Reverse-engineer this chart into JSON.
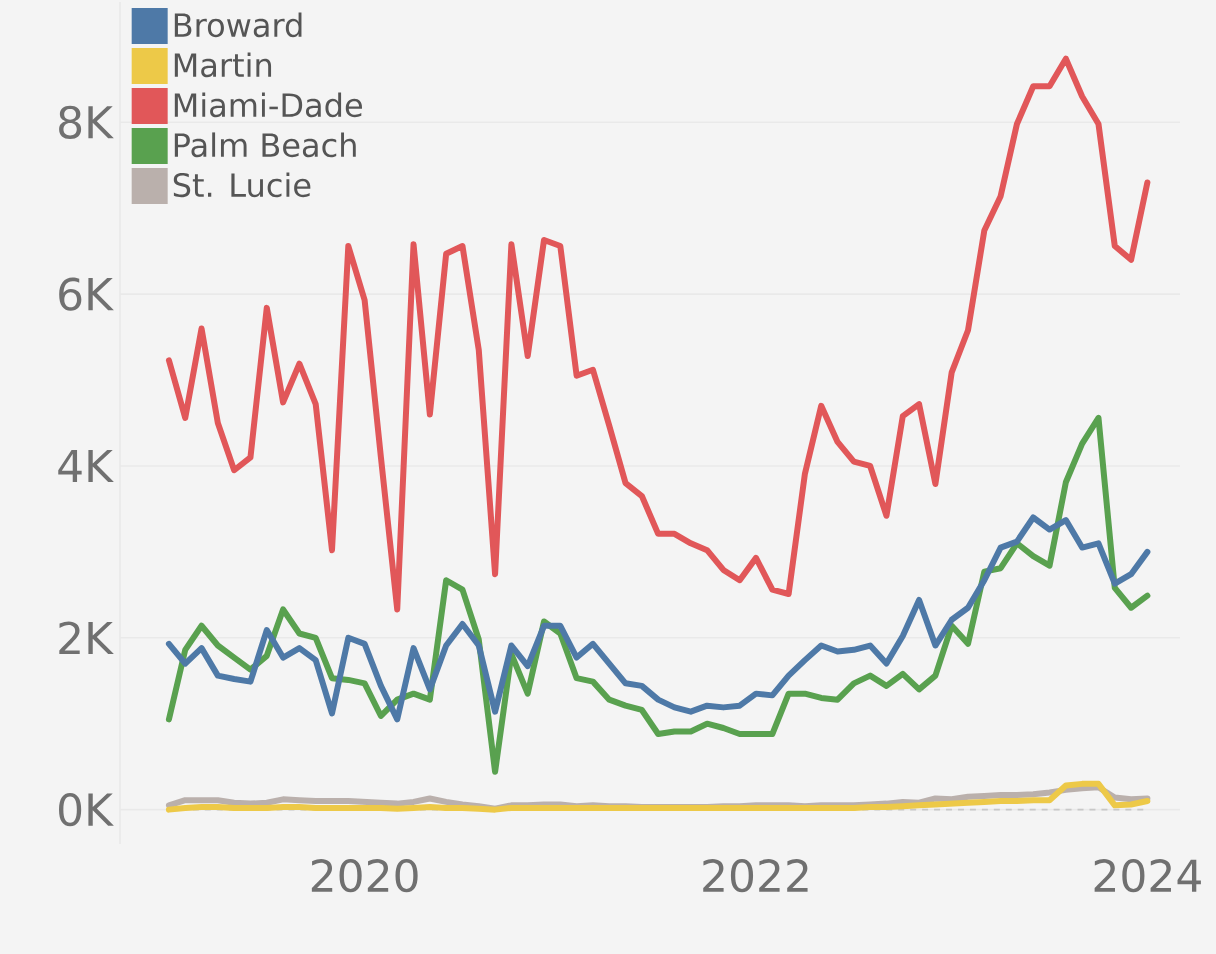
{
  "chart_data": {
    "type": "line",
    "x": [
      "2019-01",
      "2019-02",
      "2019-03",
      "2019-04",
      "2019-05",
      "2019-06",
      "2019-07",
      "2019-08",
      "2019-09",
      "2019-10",
      "2019-11",
      "2019-12",
      "2020-01",
      "2020-02",
      "2020-03",
      "2020-04",
      "2020-05",
      "2020-06",
      "2020-07",
      "2020-08",
      "2020-09",
      "2020-10",
      "2020-11",
      "2020-12",
      "2021-01",
      "2021-02",
      "2021-03",
      "2021-04",
      "2021-05",
      "2021-06",
      "2021-07",
      "2021-08",
      "2021-09",
      "2021-10",
      "2021-11",
      "2021-12",
      "2022-01",
      "2022-02",
      "2022-03",
      "2022-04",
      "2022-05",
      "2022-06",
      "2022-07",
      "2022-08",
      "2022-09",
      "2022-10",
      "2022-11",
      "2022-12",
      "2023-01",
      "2023-02",
      "2023-03",
      "2023-04",
      "2023-05",
      "2023-06",
      "2023-07",
      "2023-08",
      "2023-09",
      "2023-10",
      "2023-11",
      "2023-12",
      "2024-01"
    ],
    "series": [
      {
        "name": "Broward",
        "color": "#4e79a7",
        "values": [
          1930,
          1700,
          1880,
          1560,
          1520,
          1490,
          2090,
          1770,
          1880,
          1740,
          1120,
          2000,
          1930,
          1440,
          1050,
          1880,
          1400,
          1910,
          2160,
          1910,
          1140,
          1910,
          1670,
          2140,
          2140,
          1770,
          1930,
          1700,
          1470,
          1440,
          1280,
          1190,
          1140,
          1210,
          1190,
          1210,
          1350,
          1330,
          1560,
          1740,
          1910,
          1840,
          1860,
          1910,
          1700,
          2020,
          2440,
          1910,
          2210,
          2350,
          2670,
          3050,
          3120,
          3400,
          3260,
          3370,
          3050,
          3100,
          2630,
          2740,
          3000
        ]
      },
      {
        "name": "Martin",
        "color": "#edc948",
        "values": [
          0,
          20,
          30,
          30,
          20,
          20,
          20,
          30,
          30,
          20,
          20,
          20,
          20,
          20,
          10,
          20,
          30,
          20,
          20,
          10,
          0,
          20,
          20,
          20,
          20,
          20,
          20,
          20,
          20,
          20,
          20,
          20,
          20,
          20,
          20,
          20,
          20,
          20,
          20,
          20,
          20,
          20,
          20,
          30,
          30,
          40,
          50,
          60,
          70,
          80,
          90,
          100,
          100,
          110,
          110,
          280,
          300,
          300,
          50,
          60,
          100
        ]
      },
      {
        "name": "Miami-Dade",
        "color": "#e15759",
        "values": [
          5230,
          4560,
          5600,
          4500,
          3950,
          4100,
          5840,
          4740,
          5190,
          4720,
          3020,
          6560,
          5930,
          4100,
          2330,
          6580,
          4600,
          6470,
          6560,
          5350,
          2740,
          6580,
          5280,
          6630,
          6560,
          5050,
          5120,
          4470,
          3800,
          3650,
          3210,
          3210,
          3100,
          3020,
          2790,
          2670,
          2930,
          2560,
          2510,
          3910,
          4700,
          4280,
          4050,
          4000,
          3420,
          4580,
          4720,
          3790,
          5090,
          5580,
          6740,
          7140,
          7980,
          8420,
          8420,
          8740,
          8300,
          7980,
          6560,
          6400,
          7300
        ]
      },
      {
        "name": "Palm Beach",
        "color": "#59a14f",
        "values": [
          1050,
          1860,
          2140,
          1910,
          1770,
          1630,
          1790,
          2330,
          2050,
          2000,
          1530,
          1510,
          1470,
          1090,
          1280,
          1350,
          1280,
          2670,
          2560,
          1980,
          440,
          1810,
          1350,
          2190,
          2050,
          1530,
          1490,
          1280,
          1210,
          1160,
          880,
          910,
          910,
          1000,
          950,
          880,
          880,
          880,
          1350,
          1350,
          1300,
          1280,
          1470,
          1560,
          1440,
          1580,
          1400,
          1560,
          2140,
          1930,
          2770,
          2810,
          3100,
          2950,
          2840,
          3810,
          4260,
          4560,
          2580,
          2350,
          2490
        ]
      },
      {
        "name": "St. Lucie",
        "color": "#bab0ac",
        "values": [
          50,
          110,
          110,
          110,
          80,
          70,
          80,
          120,
          110,
          100,
          100,
          100,
          90,
          80,
          70,
          90,
          130,
          90,
          60,
          40,
          10,
          50,
          50,
          60,
          60,
          40,
          50,
          40,
          40,
          30,
          30,
          30,
          30,
          30,
          40,
          40,
          50,
          50,
          50,
          40,
          50,
          50,
          50,
          60,
          70,
          90,
          80,
          130,
          120,
          150,
          160,
          170,
          170,
          180,
          200,
          230,
          250,
          260,
          140,
          120,
          130
        ]
      }
    ],
    "xlim": [
      "2018-10",
      "2024-03"
    ],
    "xticks": [
      "2020",
      "2022",
      "2024"
    ],
    "ylim": [
      -400,
      9400
    ],
    "yticks": [
      {
        "value": 0,
        "label": "0K"
      },
      {
        "value": 2000,
        "label": "2K"
      },
      {
        "value": 4000,
        "label": "4K"
      },
      {
        "value": 6000,
        "label": "6K"
      },
      {
        "value": 8000,
        "label": "8K"
      }
    ],
    "grid": "y",
    "legend": "top left",
    "line_style": "solid",
    "ref_lines": [
      {
        "axis": "y",
        "value": 0,
        "line_style": "dashed",
        "color": "#c8c8c8"
      }
    ]
  }
}
